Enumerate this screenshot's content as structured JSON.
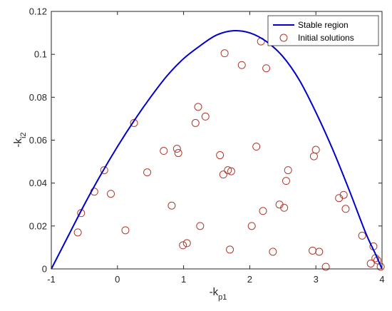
{
  "chart_data": {
    "type": "scatter",
    "xlabel_main": "-k",
    "xlabel_sub": "p1",
    "ylabel_main": "-k",
    "ylabel_sub": "i2",
    "xlim": [
      -1,
      4
    ],
    "ylim": [
      0,
      0.12
    ],
    "xticks": [
      -1,
      0,
      1,
      2,
      3,
      4
    ],
    "yticks": [
      0,
      0.02,
      0.04,
      0.06,
      0.08,
      0.1,
      0.12
    ],
    "ytick_labels": [
      "0",
      "0.02",
      "0.04",
      "0.06",
      "0.08",
      "0.1",
      "0.12"
    ],
    "grid": false,
    "legend_position": "top-right",
    "line_color": "#0000cc",
    "marker_color": "#b03a2e",
    "series": [
      {
        "name": "Stable region",
        "kind": "line",
        "x": [
          -1.0,
          -0.75,
          -0.5,
          -0.25,
          0.0,
          0.25,
          0.5,
          0.75,
          1.0,
          1.25,
          1.5,
          1.75,
          2.0,
          2.25,
          2.5,
          2.75,
          3.0,
          3.25,
          3.5,
          3.75,
          3.9,
          4.0
        ],
        "y": [
          0.0,
          0.015,
          0.03,
          0.044,
          0.057,
          0.069,
          0.08,
          0.09,
          0.098,
          0.104,
          0.109,
          0.111,
          0.11,
          0.106,
          0.099,
          0.088,
          0.073,
          0.056,
          0.037,
          0.017,
          0.007,
          0.0
        ]
      },
      {
        "name": "Initial solutions",
        "kind": "scatter",
        "x": [
          -0.6,
          -0.55,
          -0.2,
          -0.35,
          -0.1,
          0.12,
          0.25,
          0.45,
          0.7,
          0.82,
          0.9,
          0.92,
          0.99,
          1.05,
          1.18,
          1.22,
          1.25,
          1.33,
          1.55,
          1.6,
          1.62,
          1.67,
          1.7,
          1.72,
          1.88,
          2.03,
          2.1,
          2.17,
          2.2,
          2.25,
          2.35,
          2.45,
          2.52,
          2.55,
          2.58,
          2.95,
          2.97,
          3.0,
          3.05,
          3.15,
          3.35,
          3.42,
          3.45,
          3.7,
          3.83,
          3.87,
          3.9,
          3.93,
          3.98
        ],
        "y": [
          0.017,
          0.026,
          0.046,
          0.036,
          0.035,
          0.018,
          0.068,
          0.045,
          0.055,
          0.0295,
          0.056,
          0.054,
          0.011,
          0.012,
          0.068,
          0.0755,
          0.02,
          0.071,
          0.053,
          0.044,
          0.1005,
          0.046,
          0.009,
          0.0455,
          0.095,
          0.02,
          0.057,
          0.106,
          0.027,
          0.0935,
          0.008,
          0.03,
          0.0285,
          0.041,
          0.046,
          0.0085,
          0.0525,
          0.0555,
          0.008,
          0.001,
          0.033,
          0.0345,
          0.028,
          0.0155,
          0.0025,
          0.0105,
          0.005,
          0.004,
          0.001
        ]
      }
    ]
  }
}
